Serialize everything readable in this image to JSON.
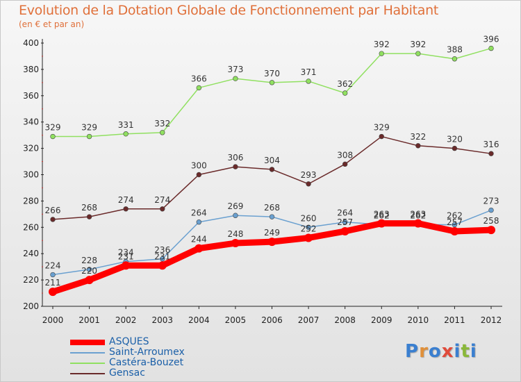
{
  "header": {
    "title": "Evolution de la Dotation Globale de Fonctionnement par Habitant",
    "subtitle": "(en € et par an)"
  },
  "logo": {
    "text": "Proxiti",
    "colors": [
      "#3a7fd0",
      "#e0903a",
      "#3a7fd0",
      "#e04a3a",
      "#3a7fd0",
      "#8ab83a",
      "#3a7fd0"
    ]
  },
  "chart_data": {
    "type": "line",
    "title": "Evolution de la Dotation Globale de Fonctionnement par Habitant",
    "subtitle": "(en € et par an)",
    "xlabel": "",
    "ylabel": "",
    "ylim": [
      200,
      400
    ],
    "yticks": [
      200,
      220,
      240,
      260,
      280,
      300,
      320,
      340,
      360,
      380,
      400
    ],
    "grid": false,
    "legend_position": "bottom-left",
    "x": [
      "2000",
      "2001",
      "2002",
      "2003",
      "2004",
      "2005",
      "2006",
      "2007",
      "2008",
      "2009",
      "2010",
      "2011",
      "2012"
    ],
    "series": [
      {
        "name": "ASQUES",
        "color": "#ff0000",
        "values": [
          211,
          220,
          231,
          231,
          244,
          248,
          249,
          252,
          257,
          263,
          263,
          257,
          258
        ]
      },
      {
        "name": "Saint-Arroumex",
        "color": "#6aa0d0",
        "values": [
          224,
          228,
          234,
          236,
          264,
          269,
          268,
          260,
          264,
          262,
          262,
          262,
          273
        ]
      },
      {
        "name": "Castéra-Bouzet",
        "color": "#90e060",
        "values": [
          329,
          329,
          331,
          332,
          366,
          373,
          370,
          371,
          362,
          392,
          392,
          388,
          396
        ]
      },
      {
        "name": "Gensac",
        "color": "#6a2a2a",
        "values": [
          266,
          268,
          274,
          274,
          300,
          306,
          304,
          293,
          308,
          329,
          322,
          320,
          316
        ]
      }
    ]
  }
}
